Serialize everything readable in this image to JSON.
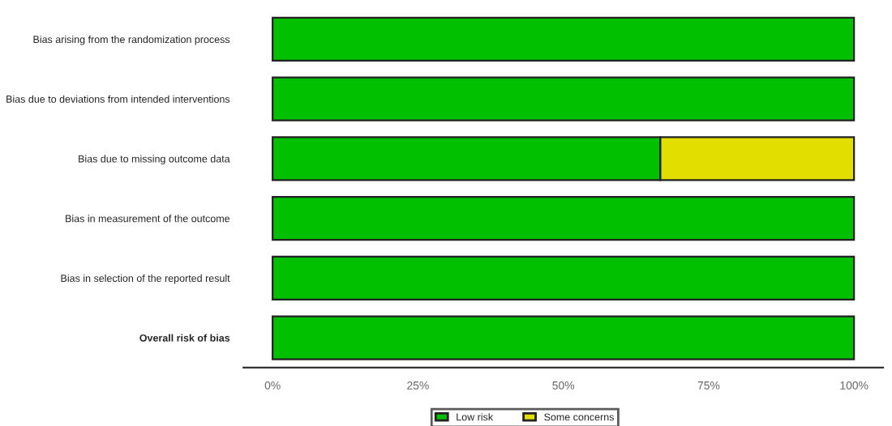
{
  "chart_data": {
    "type": "bar",
    "orientation": "horizontal",
    "stacked": true,
    "categories": [
      "Bias arising from the randomization process",
      "Bias due to deviations from intended interventions",
      "Bias due to missing outcome data",
      "Bias in measurement of the outcome",
      "Bias in selection of the reported result",
      "Overall risk of bias"
    ],
    "series": [
      {
        "name": "Low risk",
        "color": "#00c000",
        "values": [
          100,
          100,
          66.7,
          100,
          100,
          100
        ]
      },
      {
        "name": "Some concerns",
        "color": "#e2df00",
        "values": [
          null,
          null,
          33.3,
          null,
          null,
          null
        ]
      }
    ],
    "xlim": [
      -5,
      105
    ],
    "xticks": [
      {
        "value": 0,
        "label": "0%"
      },
      {
        "value": 25,
        "label": "25%"
      },
      {
        "value": 50,
        "label": "50%"
      },
      {
        "value": 75,
        "label": "75%"
      },
      {
        "value": 100,
        "label": "100%"
      }
    ],
    "grid": false,
    "legend": "bottom"
  }
}
